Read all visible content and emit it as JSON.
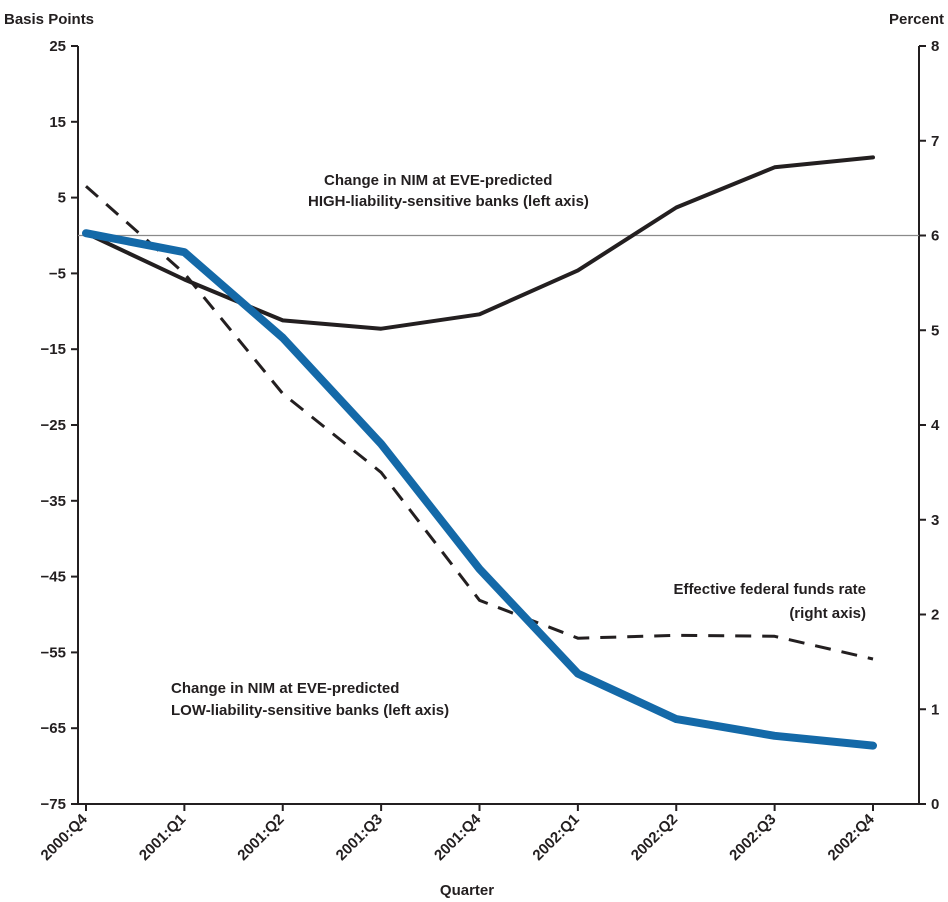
{
  "chart_data": {
    "type": "line",
    "title": "",
    "xlabel": "Quarter",
    "ylabel_left": "Basis Points",
    "ylabel_right": "Percent",
    "categories": [
      "2000:Q4",
      "2001:Q1",
      "2001:Q2",
      "2001:Q3",
      "2001:Q4",
      "2002:Q1",
      "2002:Q2",
      "2002:Q3",
      "2002:Q4"
    ],
    "ylim_left": [
      -75,
      25
    ],
    "yticks_left": [
      "25",
      "15",
      "5",
      "−5",
      "−15",
      "−25",
      "−35",
      "−45",
      "−55",
      "−65",
      "−75"
    ],
    "ylim_right": [
      0,
      8
    ],
    "yticks_right": [
      "8",
      "7",
      "6",
      "5",
      "4",
      "3",
      "2",
      "1",
      "0"
    ],
    "zero_line_left": 0,
    "series": [
      {
        "name": "Change in NIM at EVE-predicted HIGH-liability-sensitive banks (left axis)",
        "axis": "left",
        "style": "solid",
        "color": "#231f20",
        "values": [
          0.3,
          -5.8,
          -11.2,
          -12.3,
          -10.4,
          -4.6,
          3.7,
          9.0,
          10.3
        ]
      },
      {
        "name": "Change in NIM at EVE-predicted LOW-liability-sensitive banks (left axis)",
        "axis": "left",
        "style": "solid-thick",
        "color": "#1469a8",
        "values": [
          0.3,
          -2.2,
          -13.5,
          -27.5,
          -44.0,
          -57.8,
          -63.8,
          -66.0,
          -67.3
        ]
      },
      {
        "name": "Effective federal funds rate (right axis)",
        "axis": "right",
        "style": "dashed",
        "color": "#231f20",
        "values": [
          6.52,
          5.6,
          4.33,
          3.5,
          2.15,
          1.75,
          1.78,
          1.77,
          1.53
        ]
      }
    ],
    "annotations": {
      "high_line1": "Change in NIM at EVE-predicted",
      "high_line2": "HIGH-liability-sensitive banks (left axis)",
      "low_line1": "Change in NIM at EVE-predicted",
      "low_line2": "LOW-liability-sensitive banks (left axis)",
      "ffr_line1": "Effective federal funds rate",
      "ffr_line2": "(right axis)"
    }
  }
}
